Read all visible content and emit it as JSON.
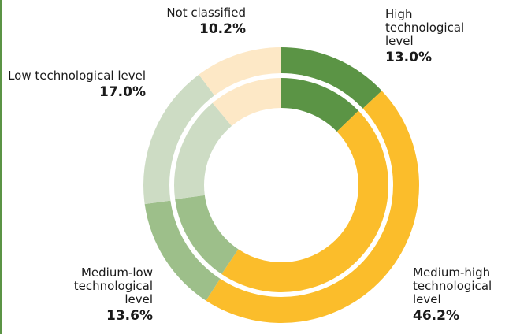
{
  "chart_data": {
    "type": "donut",
    "categories": [
      "High technological level",
      "Medium-high technological level",
      "Medium-low technological level",
      "Low technological level",
      "Not classified"
    ],
    "colors": [
      "#5b9445",
      "#fbbd2b",
      "#9dbf8a",
      "#cddcc4",
      "#fde8c6"
    ],
    "series": [
      {
        "values": [
          13.0,
          46.2,
          13.6,
          17.0,
          10.2
        ],
        "value_labels": [
          "13.0%",
          "46.2%",
          "13.6%",
          "17.0%",
          "10.2%"
        ]
      },
      {
        "values": [
          12.8,
          46.6,
          13.5,
          16.0,
          11.1
        ]
      }
    ]
  }
}
